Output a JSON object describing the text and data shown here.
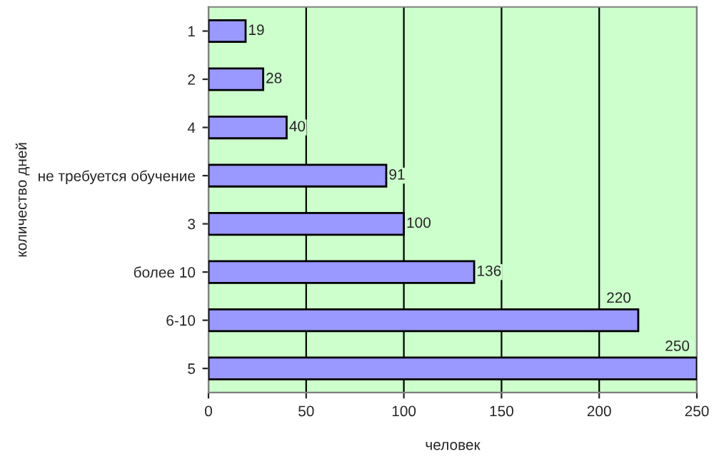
{
  "chart_data": {
    "type": "bar",
    "orientation": "horizontal",
    "xlabel": "человек",
    "ylabel": "количество дней",
    "categories": [
      "1",
      "2",
      "4",
      "не требуется обучение",
      "3",
      "более 10",
      "6-10",
      "5"
    ],
    "values": [
      19,
      28,
      40,
      91,
      100,
      136,
      220,
      250
    ],
    "color": "#9999ff",
    "xlim": [
      0,
      250
    ],
    "xticks": [
      0,
      50,
      100,
      150,
      200,
      250
    ],
    "grid": "x",
    "data_labels": true
  }
}
